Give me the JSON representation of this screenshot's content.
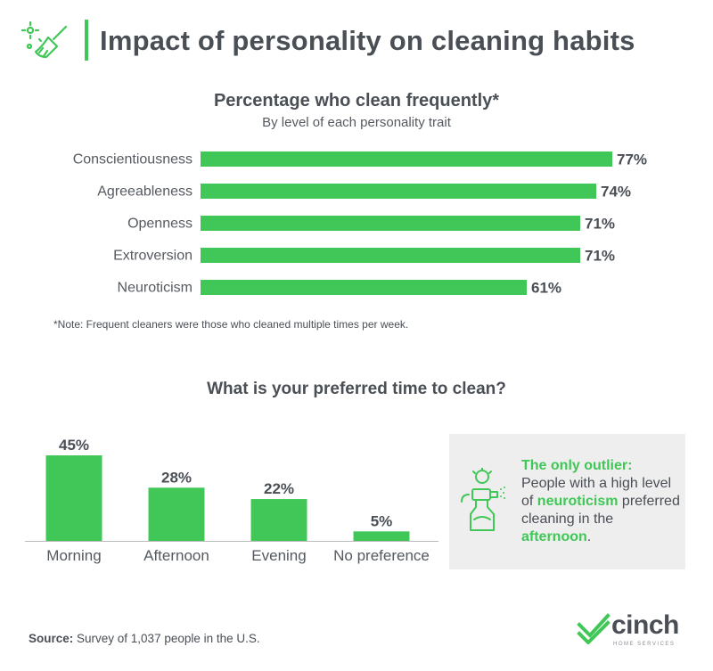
{
  "header": {
    "title": "Impact of personality on cleaning habits",
    "icon": "broom-sparkle-icon"
  },
  "chart_data": [
    {
      "type": "bar",
      "orientation": "horizontal",
      "title": "Percentage who clean frequently*",
      "subtitle": "By level of each personality trait",
      "categories": [
        "Conscientiousness",
        "Agreeableness",
        "Openness",
        "Extroversion",
        "Neuroticism"
      ],
      "values": [
        77,
        74,
        71,
        71,
        61
      ],
      "value_labels": [
        "77%",
        "74%",
        "71%",
        "71%",
        "61%"
      ],
      "unit": "%",
      "xlim": [
        0,
        100
      ],
      "grid": false,
      "legend": "none",
      "bar_color": "#40c757",
      "note": "*Note: Frequent cleaners were those who cleaned multiple times per week."
    },
    {
      "type": "bar",
      "orientation": "vertical",
      "title": "What is your preferred time to clean?",
      "categories": [
        "Morning",
        "Afternoon",
        "Evening",
        "No preference"
      ],
      "values": [
        45,
        28,
        22,
        5
      ],
      "value_labels": [
        "45%",
        "28%",
        "22%",
        "5%"
      ],
      "unit": "%",
      "ylim": [
        0,
        45
      ],
      "grid": false,
      "legend": "none",
      "bar_color": "#40c757"
    }
  ],
  "callout": {
    "icon": "spray-bottle-icon",
    "heading": "The only outlier:",
    "text_1": "People with a high level of ",
    "highlight_1": "neuroticism",
    "text_2": " preferred cleaning in the ",
    "highlight_2": "afternoon",
    "text_3": "."
  },
  "source": {
    "label": "Source:",
    "text": " Survey of 1,037 people in the U.S."
  },
  "logo": {
    "name": "cinch",
    "tagline": "HOME SERVICES",
    "icon": "checkmark-logo-icon"
  },
  "colors": {
    "accent": "#40c757",
    "text": "#4a4f56",
    "callout_bg": "#eeeeee"
  }
}
